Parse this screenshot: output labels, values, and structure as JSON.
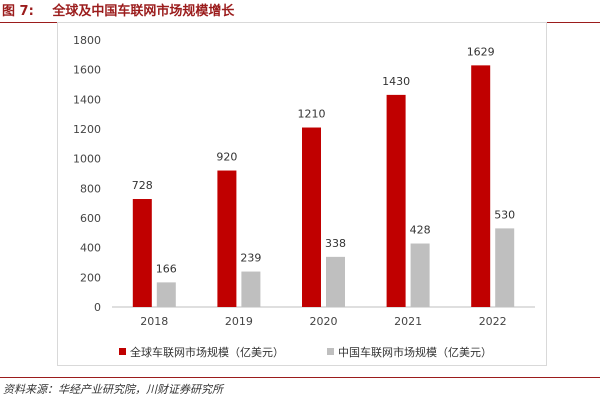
{
  "figure": {
    "number": "图 7:",
    "title": "全球及中国车联网市场规模增长",
    "source": "资料来源：华经产业研究院，川财证券研究所"
  },
  "colors": {
    "global": "#c00000",
    "china": "#bfbfbf",
    "accent": "#9b1c1c",
    "axis": "#bfbfbf"
  },
  "chart_data": {
    "type": "bar",
    "categories": [
      "2018",
      "2019",
      "2020",
      "2021",
      "2022"
    ],
    "series": [
      {
        "name": "全球车联网市场规模（亿美元）",
        "values": [
          728,
          920,
          1210,
          1430,
          1629
        ]
      },
      {
        "name": "中国车联网市场规模（亿美元）",
        "values": [
          166,
          239,
          338,
          428,
          530
        ]
      }
    ],
    "ylim": [
      0,
      1800
    ],
    "yticks": [
      "0",
      "200",
      "400",
      "600",
      "800",
      "1000",
      "1200",
      "1400",
      "1600",
      "1800"
    ],
    "grid": false,
    "legend": "bottom"
  }
}
